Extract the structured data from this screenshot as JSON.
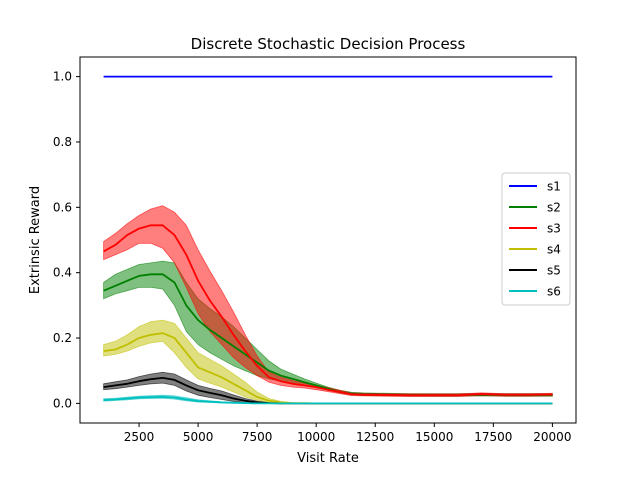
{
  "chart_data": {
    "type": "line",
    "title": "Discrete Stochastic Decision Process",
    "xlabel": "Visit Rate",
    "ylabel": "Extrinsic Reward",
    "xlim": [
      0,
      21000
    ],
    "ylim": [
      -0.06,
      1.06
    ],
    "xticks": [
      2500,
      5000,
      7500,
      10000,
      12500,
      15000,
      17500,
      20000
    ],
    "xtick_labels": [
      "2500",
      "5000",
      "7500",
      "10000",
      "12500",
      "15000",
      "17500",
      "20000"
    ],
    "yticks": [
      0.0,
      0.2,
      0.4,
      0.6,
      0.8,
      1.0
    ],
    "ytick_labels": [
      "0.0",
      "0.2",
      "0.4",
      "0.6",
      "0.8",
      "1.0"
    ],
    "grid": false,
    "legend_position": "center-right",
    "x": [
      1000,
      1500,
      2000,
      2500,
      3000,
      3500,
      4000,
      4500,
      5000,
      5500,
      6000,
      6500,
      7000,
      7500,
      8000,
      8500,
      9000,
      9500,
      10000,
      10500,
      11000,
      11500,
      12000,
      13000,
      14000,
      15000,
      16000,
      17000,
      18000,
      19000,
      20000
    ],
    "series": [
      {
        "name": "s1",
        "color": "#0000ff",
        "values": [
          1,
          1,
          1,
          1,
          1,
          1,
          1,
          1,
          1,
          1,
          1,
          1,
          1,
          1,
          1,
          1,
          1,
          1,
          1,
          1,
          1,
          1,
          1,
          1,
          1,
          1,
          1,
          1,
          1,
          1,
          1
        ],
        "lower": null,
        "upper": null
      },
      {
        "name": "s2",
        "color": "#008000",
        "values": [
          0.345,
          0.36,
          0.375,
          0.39,
          0.395,
          0.395,
          0.37,
          0.3,
          0.255,
          0.225,
          0.2,
          0.175,
          0.15,
          0.125,
          0.1,
          0.085,
          0.075,
          0.065,
          0.055,
          0.045,
          0.035,
          0.03,
          0.028,
          0.027,
          0.026,
          0.025,
          0.025,
          0.026,
          0.025,
          0.025,
          0.025
        ],
        "lower": [
          0.32,
          0.335,
          0.345,
          0.355,
          0.355,
          0.35,
          0.3,
          0.22,
          0.18,
          0.155,
          0.135,
          0.115,
          0.1,
          0.085,
          0.075,
          0.068,
          0.062,
          0.055,
          0.048,
          0.04,
          0.032,
          0.026,
          0.024,
          0.023,
          0.022,
          0.022,
          0.022,
          0.023,
          0.022,
          0.022,
          0.022
        ],
        "upper": [
          0.37,
          0.395,
          0.41,
          0.425,
          0.43,
          0.435,
          0.43,
          0.37,
          0.32,
          0.29,
          0.265,
          0.235,
          0.2,
          0.165,
          0.13,
          0.105,
          0.09,
          0.075,
          0.062,
          0.05,
          0.04,
          0.034,
          0.032,
          0.031,
          0.03,
          0.03,
          0.03,
          0.031,
          0.03,
          0.03,
          0.03
        ]
      },
      {
        "name": "s3",
        "color": "#ff0000",
        "values": [
          0.465,
          0.485,
          0.515,
          0.535,
          0.545,
          0.545,
          0.515,
          0.455,
          0.375,
          0.315,
          0.265,
          0.21,
          0.16,
          0.115,
          0.08,
          0.068,
          0.06,
          0.055,
          0.05,
          0.042,
          0.035,
          0.028,
          0.027,
          0.026,
          0.025,
          0.025,
          0.025,
          0.028,
          0.026,
          0.026,
          0.027
        ],
        "lower": [
          0.44,
          0.455,
          0.47,
          0.49,
          0.49,
          0.475,
          0.43,
          0.355,
          0.275,
          0.22,
          0.18,
          0.14,
          0.11,
          0.085,
          0.065,
          0.055,
          0.05,
          0.047,
          0.042,
          0.036,
          0.03,
          0.024,
          0.023,
          0.022,
          0.021,
          0.021,
          0.021,
          0.024,
          0.022,
          0.022,
          0.023
        ],
        "upper": [
          0.495,
          0.52,
          0.55,
          0.575,
          0.595,
          0.605,
          0.585,
          0.545,
          0.47,
          0.405,
          0.345,
          0.28,
          0.21,
          0.145,
          0.095,
          0.08,
          0.07,
          0.062,
          0.056,
          0.048,
          0.04,
          0.032,
          0.031,
          0.03,
          0.029,
          0.029,
          0.029,
          0.032,
          0.03,
          0.03,
          0.031
        ]
      },
      {
        "name": "s4",
        "color": "#bfbf00",
        "values": [
          0.16,
          0.165,
          0.18,
          0.2,
          0.21,
          0.215,
          0.2,
          0.155,
          0.11,
          0.095,
          0.08,
          0.06,
          0.04,
          0.02,
          0.008,
          0.003,
          0.001,
          0.0005,
          0,
          0,
          0,
          0,
          0,
          0,
          0,
          0,
          0,
          0,
          0,
          0,
          0
        ],
        "lower": [
          0.145,
          0.15,
          0.16,
          0.175,
          0.185,
          0.19,
          0.155,
          0.11,
          0.075,
          0.062,
          0.05,
          0.035,
          0.02,
          0.01,
          0.003,
          0.001,
          0,
          0,
          0,
          0,
          0,
          0,
          0,
          0,
          0,
          0,
          0,
          0,
          0,
          0,
          0
        ],
        "upper": [
          0.18,
          0.19,
          0.21,
          0.235,
          0.25,
          0.255,
          0.245,
          0.2,
          0.155,
          0.135,
          0.115,
          0.09,
          0.065,
          0.035,
          0.015,
          0.006,
          0.002,
          0.001,
          0,
          0,
          0,
          0,
          0,
          0,
          0,
          0,
          0,
          0,
          0,
          0,
          0
        ]
      },
      {
        "name": "s5",
        "color": "#000000",
        "values": [
          0.05,
          0.055,
          0.06,
          0.068,
          0.074,
          0.078,
          0.072,
          0.055,
          0.04,
          0.032,
          0.025,
          0.015,
          0.008,
          0.003,
          0.001,
          0,
          0,
          0,
          0,
          0,
          0,
          0,
          0,
          0,
          0,
          0,
          0,
          0,
          0,
          0,
          0
        ],
        "lower": [
          0.042,
          0.045,
          0.05,
          0.055,
          0.06,
          0.062,
          0.055,
          0.038,
          0.025,
          0.018,
          0.012,
          0.006,
          0.002,
          0,
          0,
          0,
          0,
          0,
          0,
          0,
          0,
          0,
          0,
          0,
          0,
          0,
          0,
          0,
          0,
          0,
          0
        ],
        "upper": [
          0.06,
          0.066,
          0.072,
          0.082,
          0.09,
          0.095,
          0.09,
          0.072,
          0.055,
          0.046,
          0.038,
          0.026,
          0.015,
          0.007,
          0.002,
          0.001,
          0,
          0,
          0,
          0,
          0,
          0,
          0,
          0,
          0,
          0,
          0,
          0,
          0,
          0,
          0
        ],
        "_note": ""
      },
      {
        "name": "s6",
        "color": "#00bfbf",
        "values": [
          0.01,
          0.012,
          0.015,
          0.018,
          0.019,
          0.02,
          0.018,
          0.012,
          0.007,
          0.005,
          0.003,
          0.002,
          0.001,
          0,
          0,
          0,
          0,
          0,
          0,
          0,
          0,
          0,
          0,
          0,
          0,
          0,
          0,
          0,
          0,
          0,
          0
        ],
        "lower": [
          0.007,
          0.009,
          0.011,
          0.014,
          0.015,
          0.016,
          0.013,
          0.008,
          0.004,
          0.003,
          0.001,
          0,
          0,
          0,
          0,
          0,
          0,
          0,
          0,
          0,
          0,
          0,
          0,
          0,
          0,
          0,
          0,
          0,
          0,
          0,
          0
        ],
        "upper": [
          0.014,
          0.016,
          0.019,
          0.022,
          0.024,
          0.025,
          0.023,
          0.017,
          0.011,
          0.008,
          0.005,
          0.003,
          0.002,
          0.001,
          0,
          0,
          0,
          0,
          0,
          0,
          0,
          0,
          0,
          0,
          0,
          0,
          0,
          0,
          0,
          0,
          0
        ]
      }
    ]
  }
}
